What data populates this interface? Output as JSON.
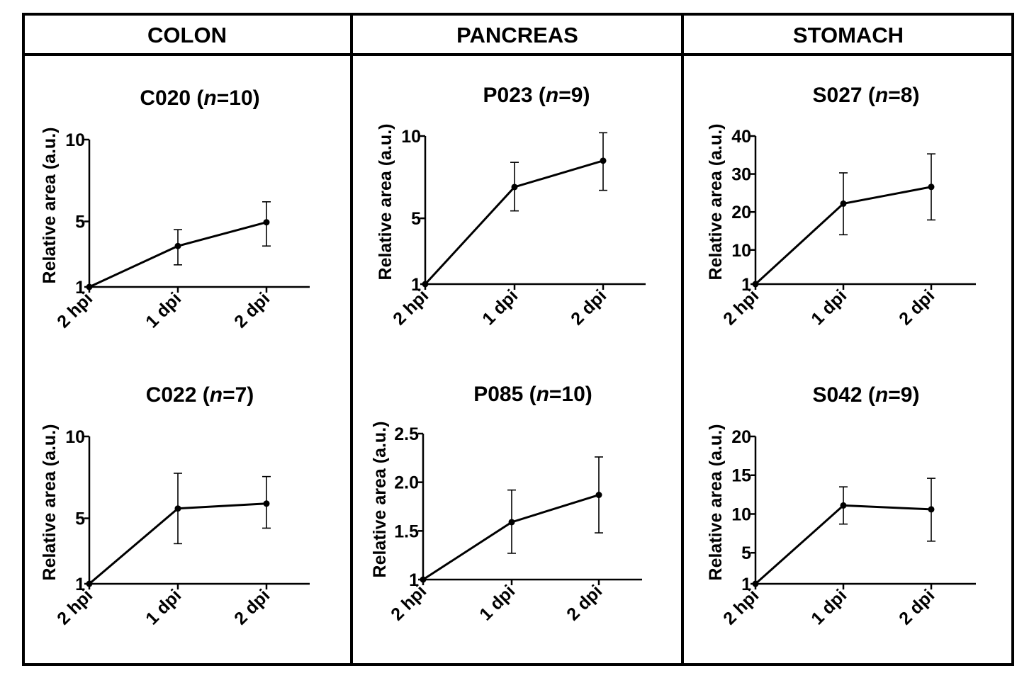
{
  "panels": [
    {
      "label": "COLON"
    },
    {
      "label": "PANCREAS"
    },
    {
      "label": "STOMACH"
    }
  ],
  "chart_data": [
    {
      "type": "line",
      "panel": "COLON",
      "title": "C020 (n=10)",
      "title_parts": [
        "C020 (",
        "n",
        "=10)"
      ],
      "ylabel": "Relative area  (a.u.)",
      "xlabel": "",
      "categories": [
        "2 hpi",
        "1 dpi",
        "2 dpi"
      ],
      "values": [
        1,
        3.5,
        4.95
      ],
      "error_low": [
        1,
        2.35,
        3.5
      ],
      "error_high": [
        1,
        4.5,
        6.2
      ],
      "ylim": [
        1,
        10
      ],
      "yticks": [
        "1",
        "5",
        "10"
      ],
      "ytick_values": [
        1,
        5,
        10
      ]
    },
    {
      "type": "line",
      "panel": "COLON",
      "title": "C022 (n=7)",
      "title_parts": [
        "C022 (",
        "n",
        "=7)"
      ],
      "ylabel": "Relative area  (a.u.)",
      "xlabel": "",
      "categories": [
        "2 hpi",
        "1 dpi",
        "2 dpi"
      ],
      "values": [
        1,
        5.6,
        5.9
      ],
      "error_low": [
        1,
        3.45,
        4.4
      ],
      "error_high": [
        1,
        7.75,
        7.55
      ],
      "ylim": [
        1,
        10
      ],
      "yticks": [
        "1",
        "5",
        "10"
      ],
      "ytick_values": [
        1,
        5,
        10
      ]
    },
    {
      "type": "line",
      "panel": "PANCREAS",
      "title": "P023 (n=9)",
      "title_parts": [
        "P023 (",
        "n",
        "=9)"
      ],
      "ylabel": "Relative area  (a.u.)",
      "xlabel": "",
      "categories": [
        "2 hpi",
        "1 dpi",
        "2 dpi"
      ],
      "values": [
        1,
        6.9,
        8.5
      ],
      "error_low": [
        1,
        5.45,
        6.7
      ],
      "error_high": [
        1,
        8.4,
        10.2
      ],
      "ylim": [
        1,
        10
      ],
      "yticks": [
        "1",
        "5",
        "10"
      ],
      "ytick_values": [
        1,
        5,
        10
      ]
    },
    {
      "type": "line",
      "panel": "PANCREAS",
      "title": "P085 (n=10)",
      "title_parts": [
        "P085 (",
        "n",
        "=10)"
      ],
      "ylabel": "Relative area  (a.u.)",
      "xlabel": "",
      "categories": [
        "2 hpi",
        "1 dpi",
        "2 dpi"
      ],
      "values": [
        1,
        1.59,
        1.87
      ],
      "error_low": [
        1,
        1.27,
        1.48
      ],
      "error_high": [
        1,
        1.92,
        2.26
      ],
      "ylim": [
        1,
        2.5
      ],
      "yticks": [
        "1",
        "1.5",
        "2.0",
        "2.5"
      ],
      "ytick_values": [
        1,
        1.5,
        2.0,
        2.5
      ]
    },
    {
      "type": "line",
      "panel": "STOMACH",
      "title": "S027 (n=8)",
      "title_parts": [
        "S027 (",
        "n",
        "=8)"
      ],
      "ylabel": "Relative area  (a.u.)",
      "xlabel": "",
      "categories": [
        "2 hpi",
        "1 dpi",
        "2 dpi"
      ],
      "values": [
        1,
        22.2,
        26.6
      ],
      "error_low": [
        1,
        14,
        17.9
      ],
      "error_high": [
        1,
        30.3,
        35.3
      ],
      "ylim": [
        1,
        40
      ],
      "yticks": [
        "1",
        "10",
        "20",
        "30",
        "40"
      ],
      "ytick_values": [
        1,
        10,
        20,
        30,
        40
      ]
    },
    {
      "type": "line",
      "panel": "STOMACH",
      "title": "S042 (n=9)",
      "title_parts": [
        "S042 (",
        "n",
        "=9)"
      ],
      "ylabel": "Relative area  (a.u.)",
      "xlabel": "",
      "categories": [
        "2 hpi",
        "1 dpi",
        "2 dpi"
      ],
      "values": [
        1,
        11.1,
        10.6
      ],
      "error_low": [
        1,
        8.7,
        6.5
      ],
      "error_high": [
        1,
        13.5,
        14.6
      ],
      "ylim": [
        1,
        20
      ],
      "yticks": [
        "1",
        "5",
        "10",
        "15",
        "20"
      ],
      "ytick_values": [
        1,
        5,
        10,
        15,
        20
      ]
    }
  ]
}
